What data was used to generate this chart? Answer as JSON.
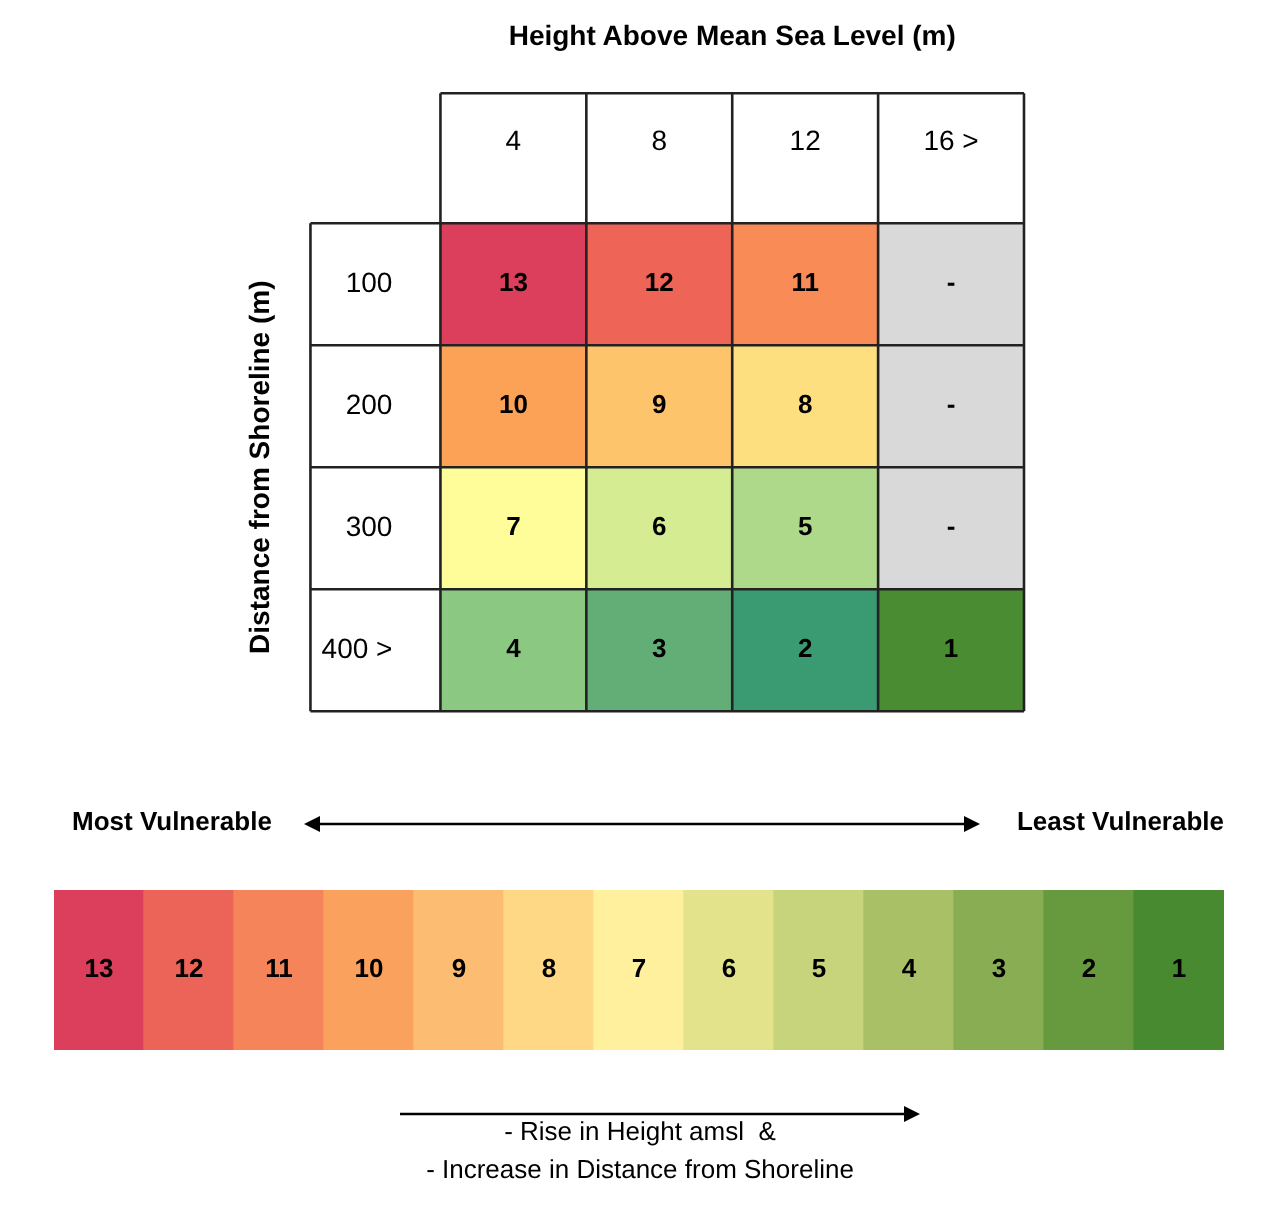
{
  "chart_data": [
    {
      "type": "heatmap",
      "xlabel": "Height Above Mean Sea Level (m)",
      "ylabel": "Distance from Shoreline (m)",
      "categories": [
        "4",
        "8",
        "12",
        "16 >"
      ],
      "y_categories": [
        "100",
        "200",
        "300",
        "400 >"
      ],
      "cells": [
        [
          13,
          12,
          11,
          null
        ],
        [
          10,
          9,
          8,
          null
        ],
        [
          7,
          6,
          5,
          null
        ],
        [
          4,
          3,
          2,
          1
        ]
      ],
      "cell_labels": [
        [
          "13",
          "12",
          "11",
          "-"
        ],
        [
          "10",
          "9",
          "8",
          "-"
        ],
        [
          "7",
          "6",
          "5",
          "-"
        ],
        [
          "4",
          "3",
          "2",
          "1"
        ]
      ],
      "colors": [
        [
          "#dc3f5c",
          "#ee6558",
          "#f88b56",
          "#d9d9d9"
        ],
        [
          "#fba257",
          "#fec46b",
          "#fedf80",
          "#d9d9d9"
        ],
        [
          "#fefd9a",
          "#d5ec92",
          "#afd98a",
          "#d9d9d9"
        ],
        [
          "#8bc882",
          "#62ae76",
          "#3a9a72",
          "#4a8c31"
        ]
      ],
      "data_labels": true
    },
    {
      "type": "heatmap",
      "categories": [
        null,
        null,
        null,
        null,
        null,
        null,
        null,
        null,
        null,
        null,
        null,
        null,
        null
      ],
      "y_categories": [
        null
      ],
      "cells": [
        [
          13,
          12,
          11,
          10,
          9,
          8,
          7,
          6,
          5,
          4,
          3,
          2,
          1
        ]
      ],
      "colors": [
        [
          "#dc3f5c",
          "#ec6458",
          "#f5845a",
          "#fba15e",
          "#fcbd72",
          "#fed884",
          "#fef09d",
          "#e3e38c",
          "#c8d47c",
          "#a9c067",
          "#88ad52",
          "#679a3f",
          "#478a30"
        ]
      ],
      "data_labels": true,
      "annotations": [
        "Most Vulnerable",
        "Least Vulnerable",
        "- Rise in Height amsl  &",
        "- Increase in Distance from Shoreline"
      ]
    }
  ]
}
